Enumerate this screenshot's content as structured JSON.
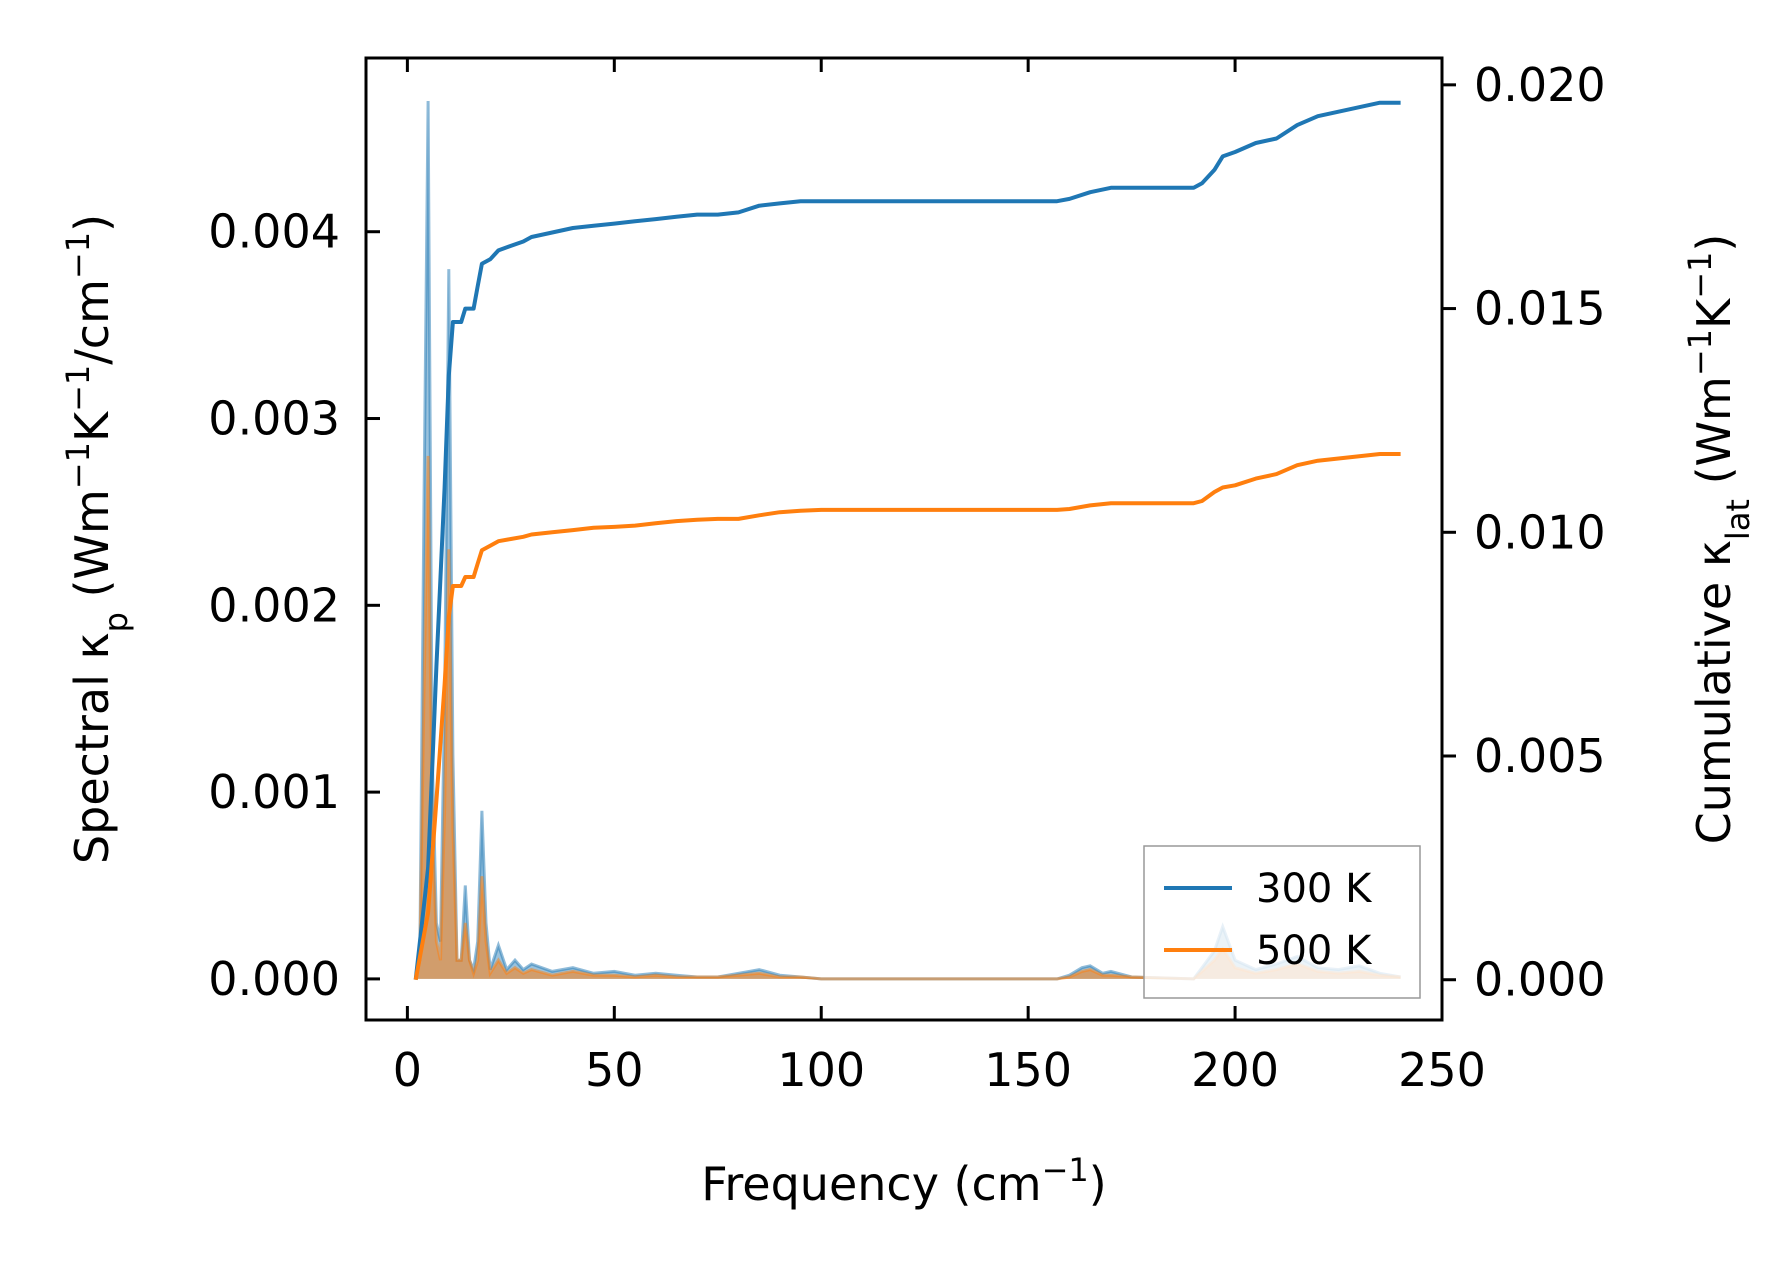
{
  "chart_data": {
    "type": "line",
    "x_axis": {
      "label": "Frequency (cm",
      "label_sup": "−1",
      "label_tail": ")",
      "range": [
        -10,
        250
      ],
      "ticks": [
        0,
        50,
        100,
        150,
        200,
        250
      ],
      "tick_labels": [
        "0",
        "50",
        "100",
        "150",
        "200",
        "250"
      ]
    },
    "y_left": {
      "label_parts": [
        {
          "text": "Spectral κ"
        },
        {
          "text": "p",
          "sub": true
        },
        {
          "text": " (Wm"
        },
        {
          "text": "−1",
          "sup": true
        },
        {
          "text": "K"
        },
        {
          "text": "−1",
          "sup": true
        },
        {
          "text": "/cm"
        },
        {
          "text": "−1",
          "sup": true
        },
        {
          "text": ")"
        }
      ],
      "range": [
        -0.00022,
        0.00493
      ],
      "ticks": [
        0,
        0.001,
        0.002,
        0.003,
        0.004
      ],
      "tick_labels": [
        "0.000",
        "0.001",
        "0.002",
        "0.003",
        "0.004"
      ]
    },
    "y_right": {
      "label_parts": [
        {
          "text": "Cumulative κ"
        },
        {
          "text": "lat",
          "sub": true
        },
        {
          "text": " (Wm"
        },
        {
          "text": "−1",
          "sup": true
        },
        {
          "text": "K"
        },
        {
          "text": "−1",
          "sup": true
        },
        {
          "text": ")"
        }
      ],
      "range": [
        -0.0009,
        0.0206
      ],
      "ticks": [
        0,
        0.005,
        0.01,
        0.015,
        0.02
      ],
      "tick_labels": [
        "0.000",
        "0.005",
        "0.010",
        "0.015",
        "0.020"
      ]
    },
    "legend": {
      "position": "lower-right",
      "entries": [
        "300 K",
        "500 K"
      ]
    },
    "series": [
      {
        "name": "300 K",
        "color": "#1f77b4",
        "cumulative": [
          [
            2,
            0
          ],
          [
            5,
            0.0025
          ],
          [
            7,
            0.007
          ],
          [
            9,
            0.011
          ],
          [
            10,
            0.0135
          ],
          [
            11,
            0.0147
          ],
          [
            13,
            0.0147
          ],
          [
            14,
            0.015
          ],
          [
            16,
            0.015
          ],
          [
            17,
            0.0155
          ],
          [
            18,
            0.016
          ],
          [
            20,
            0.0161
          ],
          [
            22,
            0.0163
          ],
          [
            25,
            0.0164
          ],
          [
            28,
            0.0165
          ],
          [
            30,
            0.0166
          ],
          [
            35,
            0.0167
          ],
          [
            40,
            0.0168
          ],
          [
            45,
            0.01685
          ],
          [
            50,
            0.0169
          ],
          [
            55,
            0.01695
          ],
          [
            60,
            0.017
          ],
          [
            65,
            0.01705
          ],
          [
            70,
            0.0171
          ],
          [
            75,
            0.0171
          ],
          [
            80,
            0.01715
          ],
          [
            85,
            0.0173
          ],
          [
            90,
            0.01735
          ],
          [
            95,
            0.0174
          ],
          [
            100,
            0.0174
          ],
          [
            150,
            0.0174
          ],
          [
            157,
            0.0174
          ],
          [
            160,
            0.01745
          ],
          [
            165,
            0.0176
          ],
          [
            170,
            0.0177
          ],
          [
            190,
            0.0177
          ],
          [
            192,
            0.0178
          ],
          [
            195,
            0.0181
          ],
          [
            197,
            0.0184
          ],
          [
            200,
            0.0185
          ],
          [
            205,
            0.0187
          ],
          [
            210,
            0.0188
          ],
          [
            215,
            0.0191
          ],
          [
            220,
            0.0193
          ],
          [
            225,
            0.0194
          ],
          [
            230,
            0.0195
          ],
          [
            235,
            0.0196
          ],
          [
            240,
            0.0196
          ]
        ],
        "spectral": [
          [
            2,
            0
          ],
          [
            3,
            0.0001
          ],
          [
            4,
            0.0025
          ],
          [
            5,
            0.0047
          ],
          [
            6,
            0.0012
          ],
          [
            7,
            0.0003
          ],
          [
            8,
            0.0002
          ],
          [
            9,
            0.0015
          ],
          [
            10,
            0.0038
          ],
          [
            11,
            0.0012
          ],
          [
            12,
            0.0001
          ],
          [
            13,
            0.0001
          ],
          [
            14,
            0.0005
          ],
          [
            15,
            0.0001
          ],
          [
            16,
            5e-05
          ],
          [
            17,
            0.0002
          ],
          [
            18,
            0.0009
          ],
          [
            19,
            0.0003
          ],
          [
            20,
            5e-05
          ],
          [
            22,
            0.00018
          ],
          [
            24,
            5e-05
          ],
          [
            26,
            0.0001
          ],
          [
            28,
            5e-05
          ],
          [
            30,
            8e-05
          ],
          [
            35,
            4e-05
          ],
          [
            40,
            6e-05
          ],
          [
            45,
            3e-05
          ],
          [
            50,
            4e-05
          ],
          [
            55,
            2e-05
          ],
          [
            60,
            3e-05
          ],
          [
            65,
            2e-05
          ],
          [
            70,
            1e-05
          ],
          [
            75,
            1e-05
          ],
          [
            80,
            3e-05
          ],
          [
            85,
            5e-05
          ],
          [
            90,
            2e-05
          ],
          [
            95,
            1e-05
          ],
          [
            100,
            0
          ],
          [
            150,
            0
          ],
          [
            157,
            0
          ],
          [
            160,
            2e-05
          ],
          [
            163,
            6e-05
          ],
          [
            165,
            7e-05
          ],
          [
            168,
            3e-05
          ],
          [
            170,
            4e-05
          ],
          [
            175,
            1e-05
          ],
          [
            190,
            0
          ],
          [
            195,
            0.00015
          ],
          [
            197,
            0.00028
          ],
          [
            200,
            0.0001
          ],
          [
            205,
            5e-05
          ],
          [
            210,
            8e-05
          ],
          [
            215,
            0.00012
          ],
          [
            220,
            6e-05
          ],
          [
            225,
            5e-05
          ],
          [
            230,
            7e-05
          ],
          [
            235,
            3e-05
          ],
          [
            240,
            1e-05
          ]
        ]
      },
      {
        "name": "500 K",
        "color": "#ff7f0e",
        "cumulative": [
          [
            2,
            0
          ],
          [
            5,
            0.0015
          ],
          [
            7,
            0.004
          ],
          [
            9,
            0.0066
          ],
          [
            10,
            0.0081
          ],
          [
            11,
            0.0088
          ],
          [
            13,
            0.0088
          ],
          [
            14,
            0.009
          ],
          [
            16,
            0.009
          ],
          [
            17,
            0.0093
          ],
          [
            18,
            0.0096
          ],
          [
            20,
            0.0097
          ],
          [
            22,
            0.0098
          ],
          [
            25,
            0.00985
          ],
          [
            28,
            0.0099
          ],
          [
            30,
            0.00995
          ],
          [
            35,
            0.01
          ],
          [
            40,
            0.01005
          ],
          [
            45,
            0.0101
          ],
          [
            50,
            0.01012
          ],
          [
            55,
            0.01015
          ],
          [
            60,
            0.0102
          ],
          [
            65,
            0.01025
          ],
          [
            70,
            0.01028
          ],
          [
            75,
            0.0103
          ],
          [
            80,
            0.0103
          ],
          [
            85,
            0.01038
          ],
          [
            90,
            0.01045
          ],
          [
            95,
            0.01048
          ],
          [
            100,
            0.0105
          ],
          [
            150,
            0.0105
          ],
          [
            157,
            0.0105
          ],
          [
            160,
            0.01052
          ],
          [
            165,
            0.0106
          ],
          [
            170,
            0.01065
          ],
          [
            190,
            0.01065
          ],
          [
            192,
            0.0107
          ],
          [
            195,
            0.0109
          ],
          [
            197,
            0.011
          ],
          [
            200,
            0.01105
          ],
          [
            205,
            0.0112
          ],
          [
            210,
            0.0113
          ],
          [
            215,
            0.0115
          ],
          [
            220,
            0.0116
          ],
          [
            225,
            0.01165
          ],
          [
            230,
            0.0117
          ],
          [
            235,
            0.01175
          ],
          [
            240,
            0.01175
          ]
        ],
        "spectral": [
          [
            2,
            0
          ],
          [
            3,
            0.0001
          ],
          [
            4,
            0.0015
          ],
          [
            5,
            0.0028
          ],
          [
            6,
            0.0008
          ],
          [
            7,
            0.0002
          ],
          [
            8,
            0.0001
          ],
          [
            9,
            0.0009
          ],
          [
            10,
            0.0023
          ],
          [
            11,
            0.0008
          ],
          [
            12,
            0.0001
          ],
          [
            13,
            0.0001
          ],
          [
            14,
            0.0003
          ],
          [
            15,
            0.0001
          ],
          [
            16,
            3e-05
          ],
          [
            17,
            0.0001
          ],
          [
            18,
            0.00055
          ],
          [
            19,
            0.0002
          ],
          [
            20,
            3e-05
          ],
          [
            22,
            0.0001
          ],
          [
            24,
            3e-05
          ],
          [
            26,
            6e-05
          ],
          [
            28,
            3e-05
          ],
          [
            30,
            5e-05
          ],
          [
            35,
            2e-05
          ],
          [
            40,
            4e-05
          ],
          [
            45,
            2e-05
          ],
          [
            50,
            2e-05
          ],
          [
            55,
            1e-05
          ],
          [
            60,
            2e-05
          ],
          [
            65,
            1e-05
          ],
          [
            70,
            1e-05
          ],
          [
            75,
            1e-05
          ],
          [
            80,
            2e-05
          ],
          [
            85,
            3e-05
          ],
          [
            90,
            1e-05
          ],
          [
            95,
            1e-05
          ],
          [
            100,
            0
          ],
          [
            150,
            0
          ],
          [
            157,
            0
          ],
          [
            160,
            1e-05
          ],
          [
            163,
            4e-05
          ],
          [
            165,
            5e-05
          ],
          [
            168,
            2e-05
          ],
          [
            170,
            2e-05
          ],
          [
            175,
            1e-05
          ],
          [
            190,
            0
          ],
          [
            195,
            0.0001
          ],
          [
            197,
            0.00016
          ],
          [
            200,
            6e-05
          ],
          [
            205,
            3e-05
          ],
          [
            210,
            5e-05
          ],
          [
            215,
            8e-05
          ],
          [
            220,
            4e-05
          ],
          [
            225,
            3e-05
          ],
          [
            230,
            4e-05
          ],
          [
            235,
            2e-05
          ],
          [
            240,
            1e-05
          ]
        ]
      }
    ]
  }
}
